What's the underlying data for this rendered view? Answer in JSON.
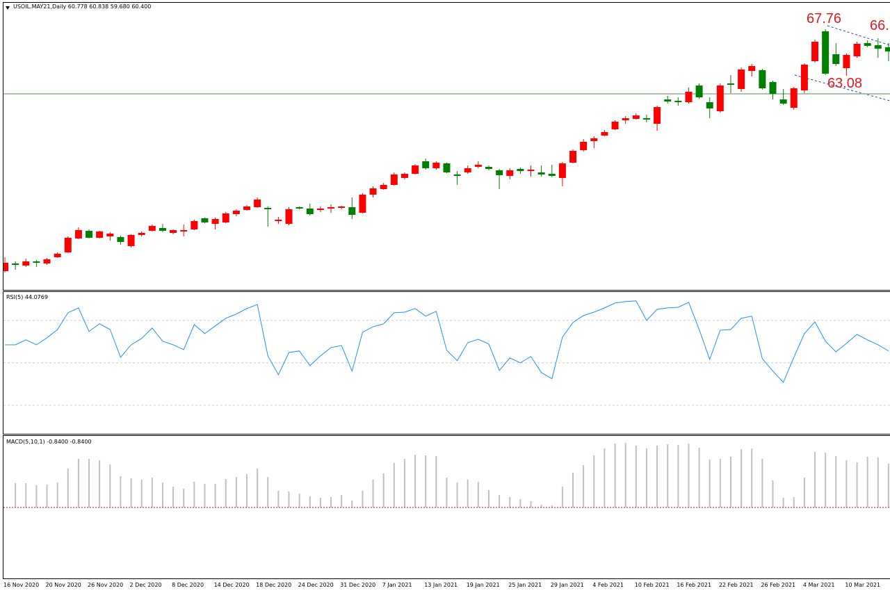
{
  "chart_data": [
    {
      "type": "candlestick",
      "title": "USOIL.MAY21,Daily  60.778 60.838 59.680 60.400",
      "annotations": [
        "67.76",
        "63.08",
        "66."
      ],
      "x": [
        "16 Nov 2020",
        null,
        null,
        null,
        "20 Nov 2020",
        null,
        null,
        null,
        "26 Nov 2020",
        null,
        null,
        null,
        "2 Dec 2020",
        null,
        null,
        null,
        "8 Dec 2020",
        null,
        null,
        null,
        "14 Dec 2020",
        null,
        null,
        null,
        "18 Dec 2020",
        null,
        null,
        null,
        "24 Dec 2020",
        null,
        null,
        null,
        "31 Dec 2020",
        null,
        null,
        null,
        "7 Jan 2021",
        null,
        null,
        null,
        "13 Jan 2021",
        null,
        null,
        null,
        "19 Jan 2021",
        null,
        null,
        null,
        "25 Jan 2021",
        null,
        null,
        null,
        "29 Jan 2021",
        null,
        null,
        null,
        "4 Feb 2021",
        null,
        null,
        null,
        "10 Feb 2021",
        null,
        null,
        null,
        "16 Feb 2021",
        null,
        null,
        null,
        "22 Feb 2021",
        null,
        null,
        null,
        "26 Feb 2021",
        null,
        null,
        null,
        "4 Mar 2021",
        null,
        null,
        null,
        "10 Mar 2021",
        null,
        null,
        null,
        null
      ],
      "open": [
        43.4,
        44.17,
        43.96,
        44.38,
        44.17,
        44.8,
        45.29,
        46.69,
        47.46,
        46.76,
        46.9,
        46.83,
        45.92,
        47.04,
        47.46,
        47.74,
        47.25,
        47.39,
        47.6,
        48.72,
        48.16,
        48.3,
        49.14,
        49.56,
        49.84,
        49.77,
        48.44,
        48.16,
        49.84,
        49.7,
        49.56,
        49.7,
        49.77,
        49.84,
        49.28,
        51.1,
        51.66,
        52.08,
        52.78,
        53.2,
        54.46,
        53.76,
        54.25,
        53.13,
        53.34,
        53.9,
        53.9,
        53.55,
        52.99,
        53.69,
        53.48,
        53.34,
        53.2,
        52.78,
        54.32,
        55.58,
        56.49,
        57.05,
        57.68,
        58.59,
        58.73,
        58.8,
        58.24,
        60.69,
        60.55,
        60.41,
        62.09,
        60.41,
        59.5,
        62.3,
        61.74,
        63.56,
        63.63,
        62.44,
        60.69,
        59.85,
        61.6,
        64.54,
        67.55,
        65.24,
        63.84,
        65.03,
        66.36,
        66.15,
        65.94
      ],
      "high": [
        44.8,
        44.38,
        44.66,
        44.52,
        44.73,
        45.29,
        46.9,
        47.81,
        47.6,
        47.46,
        47.32,
        46.97,
        47.11,
        47.39,
        48.09,
        48.16,
        47.6,
        48.09,
        48.58,
        48.79,
        48.79,
        49.35,
        49.63,
        50.05,
        50.82,
        49.91,
        48.86,
        49.84,
        49.91,
        50.19,
        49.91,
        50.12,
        49.98,
        50.82,
        51.24,
        51.94,
        52.29,
        53.34,
        53.34,
        54.18,
        54.74,
        54.46,
        54.32,
        53.48,
        54.04,
        54.46,
        54.04,
        53.69,
        53.76,
        53.83,
        54.04,
        54.04,
        54.11,
        54.39,
        55.65,
        56.7,
        56.98,
        57.61,
        58.59,
        59.01,
        59.29,
        59.15,
        60.06,
        61.04,
        60.9,
        61.88,
        62.3,
        60.9,
        62.3,
        63.14,
        63.91,
        64.26,
        63.77,
        62.58,
        61.74,
        61.95,
        64.33,
        66.71,
        67.76,
        66.36,
        65.31,
        66.5,
        66.64,
        66.85,
        66.36
      ],
      "low": [
        43.26,
        43.54,
        43.82,
        43.82,
        44.03,
        44.73,
        45.22,
        46.62,
        46.69,
        46.69,
        46.48,
        46.06,
        45.78,
        46.9,
        47.39,
        47.32,
        47.11,
        46.9,
        47.53,
        48.23,
        47.6,
        48.23,
        48.93,
        49.49,
        49.77,
        47.88,
        48.16,
        48.02,
        49.63,
        49.0,
        49.35,
        49.28,
        49.63,
        48.65,
        49.21,
        50.82,
        51.59,
        52.01,
        52.64,
        53.13,
        53.62,
        53.62,
        53.27,
        52.08,
        53.2,
        53.76,
        53.55,
        51.66,
        52.64,
        53.2,
        52.92,
        52.92,
        52.85,
        51.94,
        54.25,
        55.44,
        55.79,
        56.98,
        57.61,
        58.24,
        58.66,
        58.38,
        57.54,
        60.27,
        60.06,
        60.27,
        60.76,
        58.8,
        59.36,
        61.32,
        61.46,
        63.0,
        61.67,
        60.69,
        60.13,
        59.64,
        61.32,
        64.4,
        63.14,
        64.05,
        63.08,
        64.89,
        65.94,
        64.89,
        64.54
      ],
      "close": [
        44.24,
        44.03,
        44.38,
        44.24,
        44.59,
        45.15,
        46.76,
        47.53,
        46.76,
        47.39,
        47.18,
        46.34,
        47.04,
        47.25,
        47.95,
        47.46,
        47.53,
        47.53,
        48.44,
        48.3,
        48.65,
        49.21,
        49.49,
        49.91,
        50.61,
        49.63,
        48.58,
        49.63,
        49.7,
        49.14,
        49.7,
        49.84,
        49.91,
        49.07,
        51.1,
        51.73,
        52.08,
        53.13,
        53.2,
        54.04,
        53.76,
        54.32,
        53.34,
        52.99,
        53.76,
        54.11,
        53.69,
        53.06,
        53.55,
        53.48,
        53.62,
        53.13,
        52.99,
        54.25,
        55.51,
        56.42,
        56.77,
        57.4,
        58.45,
        58.8,
        59.08,
        58.66,
        59.92,
        60.48,
        60.41,
        61.46,
        60.9,
        59.78,
        62.09,
        62.16,
        63.7,
        64.05,
        61.81,
        61.25,
        60.27,
        61.81,
        64.19,
        66.5,
        63.28,
        64.26,
        65.17,
        66.29,
        66.08,
        65.8,
        65.52
      ],
      "up_color": "#ff0000",
      "down_color": "#008000",
      "ylim": [
        41.65,
        70.35
      ],
      "hline": 61.25
    },
    {
      "type": "line",
      "title": "RSI(5) 44.0769",
      "color": "#1e90ff",
      "values": [
        58.5,
        58.5,
        60.8,
        58.5,
        61.8,
        65.7,
        73.6,
        75.9,
        64.8,
        68.4,
        65.7,
        52.6,
        58.5,
        61.5,
        66.4,
        60.2,
        58.5,
        56.2,
        68.0,
        63.8,
        67.4,
        71.0,
        73.0,
        75.6,
        77.5,
        53.3,
        44.4,
        54.9,
        55.6,
        48.7,
        53.3,
        57.2,
        58.2,
        46.1,
        64.4,
        67.0,
        68.4,
        73.6,
        73.9,
        75.6,
        72.0,
        74.3,
        55.9,
        51.0,
        59.5,
        61.1,
        58.9,
        46.4,
        52.3,
        50.0,
        53.0,
        45.4,
        42.5,
        62.1,
        69.0,
        72.3,
        73.9,
        75.9,
        78.2,
        78.9,
        79.2,
        70.0,
        75.2,
        75.9,
        76.2,
        78.5,
        65.7,
        51.6,
        65.4,
        65.7,
        71.0,
        72.0,
        52.0,
        46.1,
        40.8,
        52.6,
        63.8,
        69.3,
        60.2,
        55.2,
        59.2,
        63.4,
        60.8,
        58.5,
        55.6
      ],
      "ylim": [
        17.2,
        83.4
      ],
      "levels": [
        70,
        50,
        30
      ]
    },
    {
      "type": "bar",
      "title": "MACD(5,10,1) -0.8400 -0.8400",
      "color": "#c0c0c0",
      "values": [
        null,
        0.875,
        0.875,
        0.8,
        0.825,
        0.9,
        1.4,
        1.75,
        1.75,
        1.7,
        1.55,
        1.125,
        1.05,
        1.0,
        1.075,
        0.9,
        0.75,
        0.675,
        0.925,
        0.85,
        0.85,
        1.025,
        1.1,
        1.2,
        1.4,
        1.1,
        0.6,
        0.575,
        0.5,
        0.4,
        0.35,
        0.375,
        0.45,
        0.25,
        0.6,
        1.0,
        1.225,
        1.6,
        1.75,
        1.9,
        1.875,
        1.85,
        1.075,
        0.9,
        1.0,
        0.925,
        0.625,
        0.45,
        0.375,
        0.3,
        0.225,
        0.1,
        0.075,
        0.75,
        1.25,
        1.525,
        1.875,
        2.125,
        2.3,
        2.325,
        2.225,
        2.125,
        2.225,
        2.275,
        2.25,
        2.3,
        2.15,
        1.725,
        1.75,
        1.825,
        2.1,
        2.125,
        1.75,
        0.975,
        0.35,
        0.375,
        1.075,
        2.0,
        1.975,
        1.85,
        1.7,
        1.625,
        1.825,
        1.8,
        1.575
      ],
      "ylim": [
        -2.55,
        2.55
      ]
    }
  ]
}
